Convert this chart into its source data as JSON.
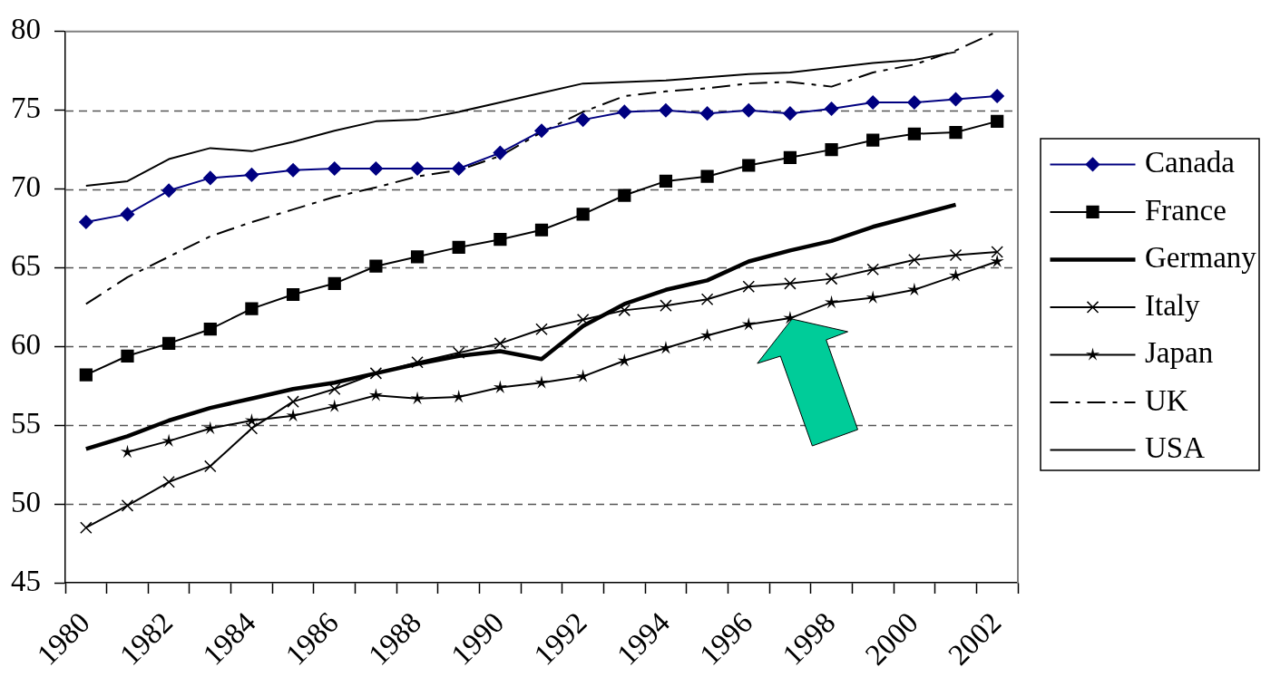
{
  "chart_data": {
    "type": "line",
    "categories": [
      "1980",
      null,
      "1982",
      null,
      "1984",
      null,
      "1986",
      null,
      "1988",
      null,
      "1990",
      null,
      "1992",
      null,
      "1994",
      null,
      "1996",
      null,
      "1998",
      null,
      "2000",
      null,
      "2002"
    ],
    "series": [
      {
        "name": "Canada",
        "color": "#000080",
        "marker": "diamond",
        "line_style": "solid",
        "values": [
          67.9,
          68.4,
          69.9,
          70.7,
          70.9,
          71.2,
          71.3,
          71.3,
          71.3,
          71.3,
          72.3,
          73.7,
          74.4,
          74.9,
          75.0,
          74.8,
          75.0,
          74.8,
          75.1,
          75.5,
          75.5,
          75.7,
          75.9
        ]
      },
      {
        "name": "France",
        "color": "#000000",
        "marker": "square",
        "line_style": "solid",
        "values": [
          58.2,
          59.4,
          60.2,
          61.1,
          62.4,
          63.3,
          64.0,
          65.1,
          65.7,
          66.3,
          66.8,
          67.4,
          68.4,
          69.6,
          70.5,
          70.8,
          71.5,
          72.0,
          72.5,
          73.1,
          73.5,
          73.6,
          74.3
        ]
      },
      {
        "name": "Germany",
        "color": "#000000",
        "marker": "none",
        "line_style": "solid",
        "values": [
          53.5,
          54.3,
          55.3,
          56.1,
          56.7,
          57.3,
          57.7,
          58.3,
          58.9,
          59.4,
          59.7,
          59.2,
          61.3,
          62.7,
          63.6,
          64.2,
          65.4,
          66.1,
          66.7,
          67.6,
          68.3,
          69.0,
          null
        ]
      },
      {
        "name": "Italy",
        "color": "#000000",
        "marker": "cross",
        "line_style": "solid",
        "values": [
          48.5,
          49.9,
          51.4,
          52.4,
          54.8,
          56.5,
          57.3,
          58.3,
          59.0,
          59.6,
          60.2,
          61.1,
          61.7,
          62.3,
          62.6,
          63.0,
          63.8,
          64.0,
          64.3,
          64.9,
          65.5,
          65.8,
          66.0
        ]
      },
      {
        "name": "Japan",
        "color": "#000000",
        "marker": "star",
        "line_style": "solid",
        "values": [
          null,
          53.3,
          54.0,
          54.8,
          55.3,
          55.6,
          56.2,
          56.9,
          56.7,
          56.8,
          57.4,
          57.7,
          58.1,
          59.1,
          59.9,
          60.7,
          61.4,
          61.8,
          62.8,
          63.1,
          63.6,
          64.5,
          65.4
        ]
      },
      {
        "name": "UK",
        "color": "#000000",
        "marker": "none",
        "line_style": "dashed",
        "values": [
          62.7,
          64.4,
          65.7,
          67.0,
          67.9,
          68.7,
          69.5,
          70.1,
          70.8,
          71.2,
          72.1,
          73.6,
          74.9,
          75.9,
          76.2,
          76.4,
          76.7,
          76.8,
          76.5,
          77.4,
          77.9,
          78.8,
          80.0
        ]
      },
      {
        "name": "USA",
        "color": "#000000",
        "marker": "none",
        "line_style": "solid",
        "values": [
          70.2,
          70.5,
          71.9,
          72.6,
          72.4,
          73.0,
          73.7,
          74.3,
          74.4,
          74.9,
          75.5,
          76.1,
          76.7,
          76.8,
          76.9,
          77.1,
          77.3,
          77.4,
          77.7,
          78.0,
          78.2,
          78.7,
          null
        ]
      }
    ],
    "ylim": [
      45,
      80
    ],
    "yticks": [
      45,
      50,
      55,
      60,
      65,
      70,
      75,
      80
    ],
    "grid": "y",
    "legend": "right"
  }
}
